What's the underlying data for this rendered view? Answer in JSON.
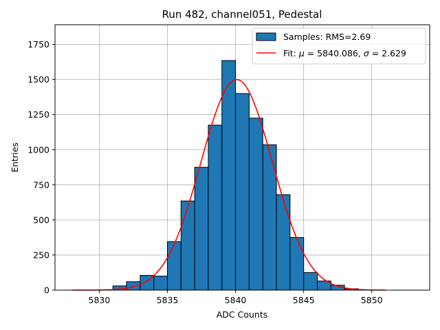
{
  "chart_data": {
    "type": "histogram",
    "title": "Run 482, channel051, Pedestal",
    "xlabel": "ADC Counts",
    "ylabel": "Entries",
    "xlim": [
      5826.75,
      5854.25
    ],
    "ylim": [
      0,
      1890
    ],
    "xticks": [
      5830,
      5835,
      5840,
      5845,
      5850
    ],
    "yticks": [
      0,
      250,
      500,
      750,
      1000,
      1250,
      1500,
      1750
    ],
    "grid": true,
    "legend_position": "top-right",
    "bar_color": "#1f77b4",
    "fit_color": "#ff0000",
    "bins": [
      {
        "left": 5831,
        "right": 5832,
        "count": 30
      },
      {
        "left": 5832,
        "right": 5833,
        "count": 60
      },
      {
        "left": 5833,
        "right": 5834,
        "count": 105
      },
      {
        "left": 5834,
        "right": 5835,
        "count": 100
      },
      {
        "left": 5835,
        "right": 5836,
        "count": 345
      },
      {
        "left": 5836,
        "right": 5837,
        "count": 635
      },
      {
        "left": 5837,
        "right": 5838,
        "count": 875
      },
      {
        "left": 5838,
        "right": 5839,
        "count": 1175
      },
      {
        "left": 5839,
        "right": 5840,
        "count": 1635
      },
      {
        "left": 5840,
        "right": 5841,
        "count": 1400
      },
      {
        "left": 5841,
        "right": 5842,
        "count": 1225
      },
      {
        "left": 5842,
        "right": 5843,
        "count": 1035
      },
      {
        "left": 5843,
        "right": 5844,
        "count": 680
      },
      {
        "left": 5844,
        "right": 5845,
        "count": 375
      },
      {
        "left": 5845,
        "right": 5846,
        "count": 125
      },
      {
        "left": 5846,
        "right": 5847,
        "count": 65
      },
      {
        "left": 5847,
        "right": 5848,
        "count": 35
      },
      {
        "left": 5848,
        "right": 5849,
        "count": 10
      }
    ],
    "fit": {
      "mu": 5840.086,
      "sigma": 2.629,
      "amplitude": 1500,
      "x_range": [
        5828,
        5851
      ]
    },
    "legend": {
      "samples_label": "Samples: RMS=2.69",
      "fit_prefix": "Fit: ",
      "mu_symbol": "μ",
      "mu_text": " = 5840.086, ",
      "sigma_symbol": "σ",
      "sigma_text": " = 2.629"
    }
  }
}
